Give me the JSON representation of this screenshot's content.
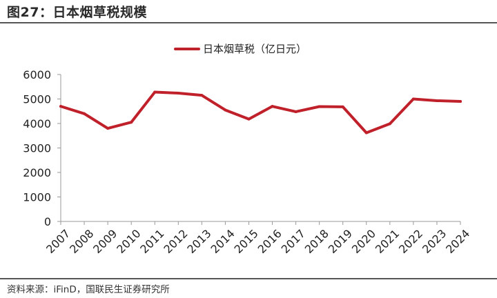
{
  "figure": {
    "title": "图27：日本烟草税规模",
    "source": "资料来源：iFinD，国联民生证券研究所"
  },
  "chart_data": {
    "type": "line",
    "x": [
      "2007",
      "2008",
      "2009",
      "2010",
      "2011",
      "2012",
      "2013",
      "2014",
      "2015",
      "2016",
      "2017",
      "2018",
      "2019",
      "2020",
      "2021",
      "2022",
      "2023",
      "2024"
    ],
    "series": [
      {
        "name": "日本烟草税（亿日元）",
        "values": [
          4700,
          4400,
          3800,
          4050,
          5280,
          5240,
          5150,
          4550,
          4180,
          4700,
          4480,
          4690,
          4680,
          3620,
          3990,
          5000,
          4930,
          4900
        ]
      }
    ],
    "ylim": [
      0,
      6000
    ],
    "yticks": [
      "0",
      "1000",
      "2000",
      "3000",
      "4000",
      "5000",
      "6000"
    ],
    "grid": false,
    "legend_position": "top-center",
    "line_color": "#C0202A"
  }
}
